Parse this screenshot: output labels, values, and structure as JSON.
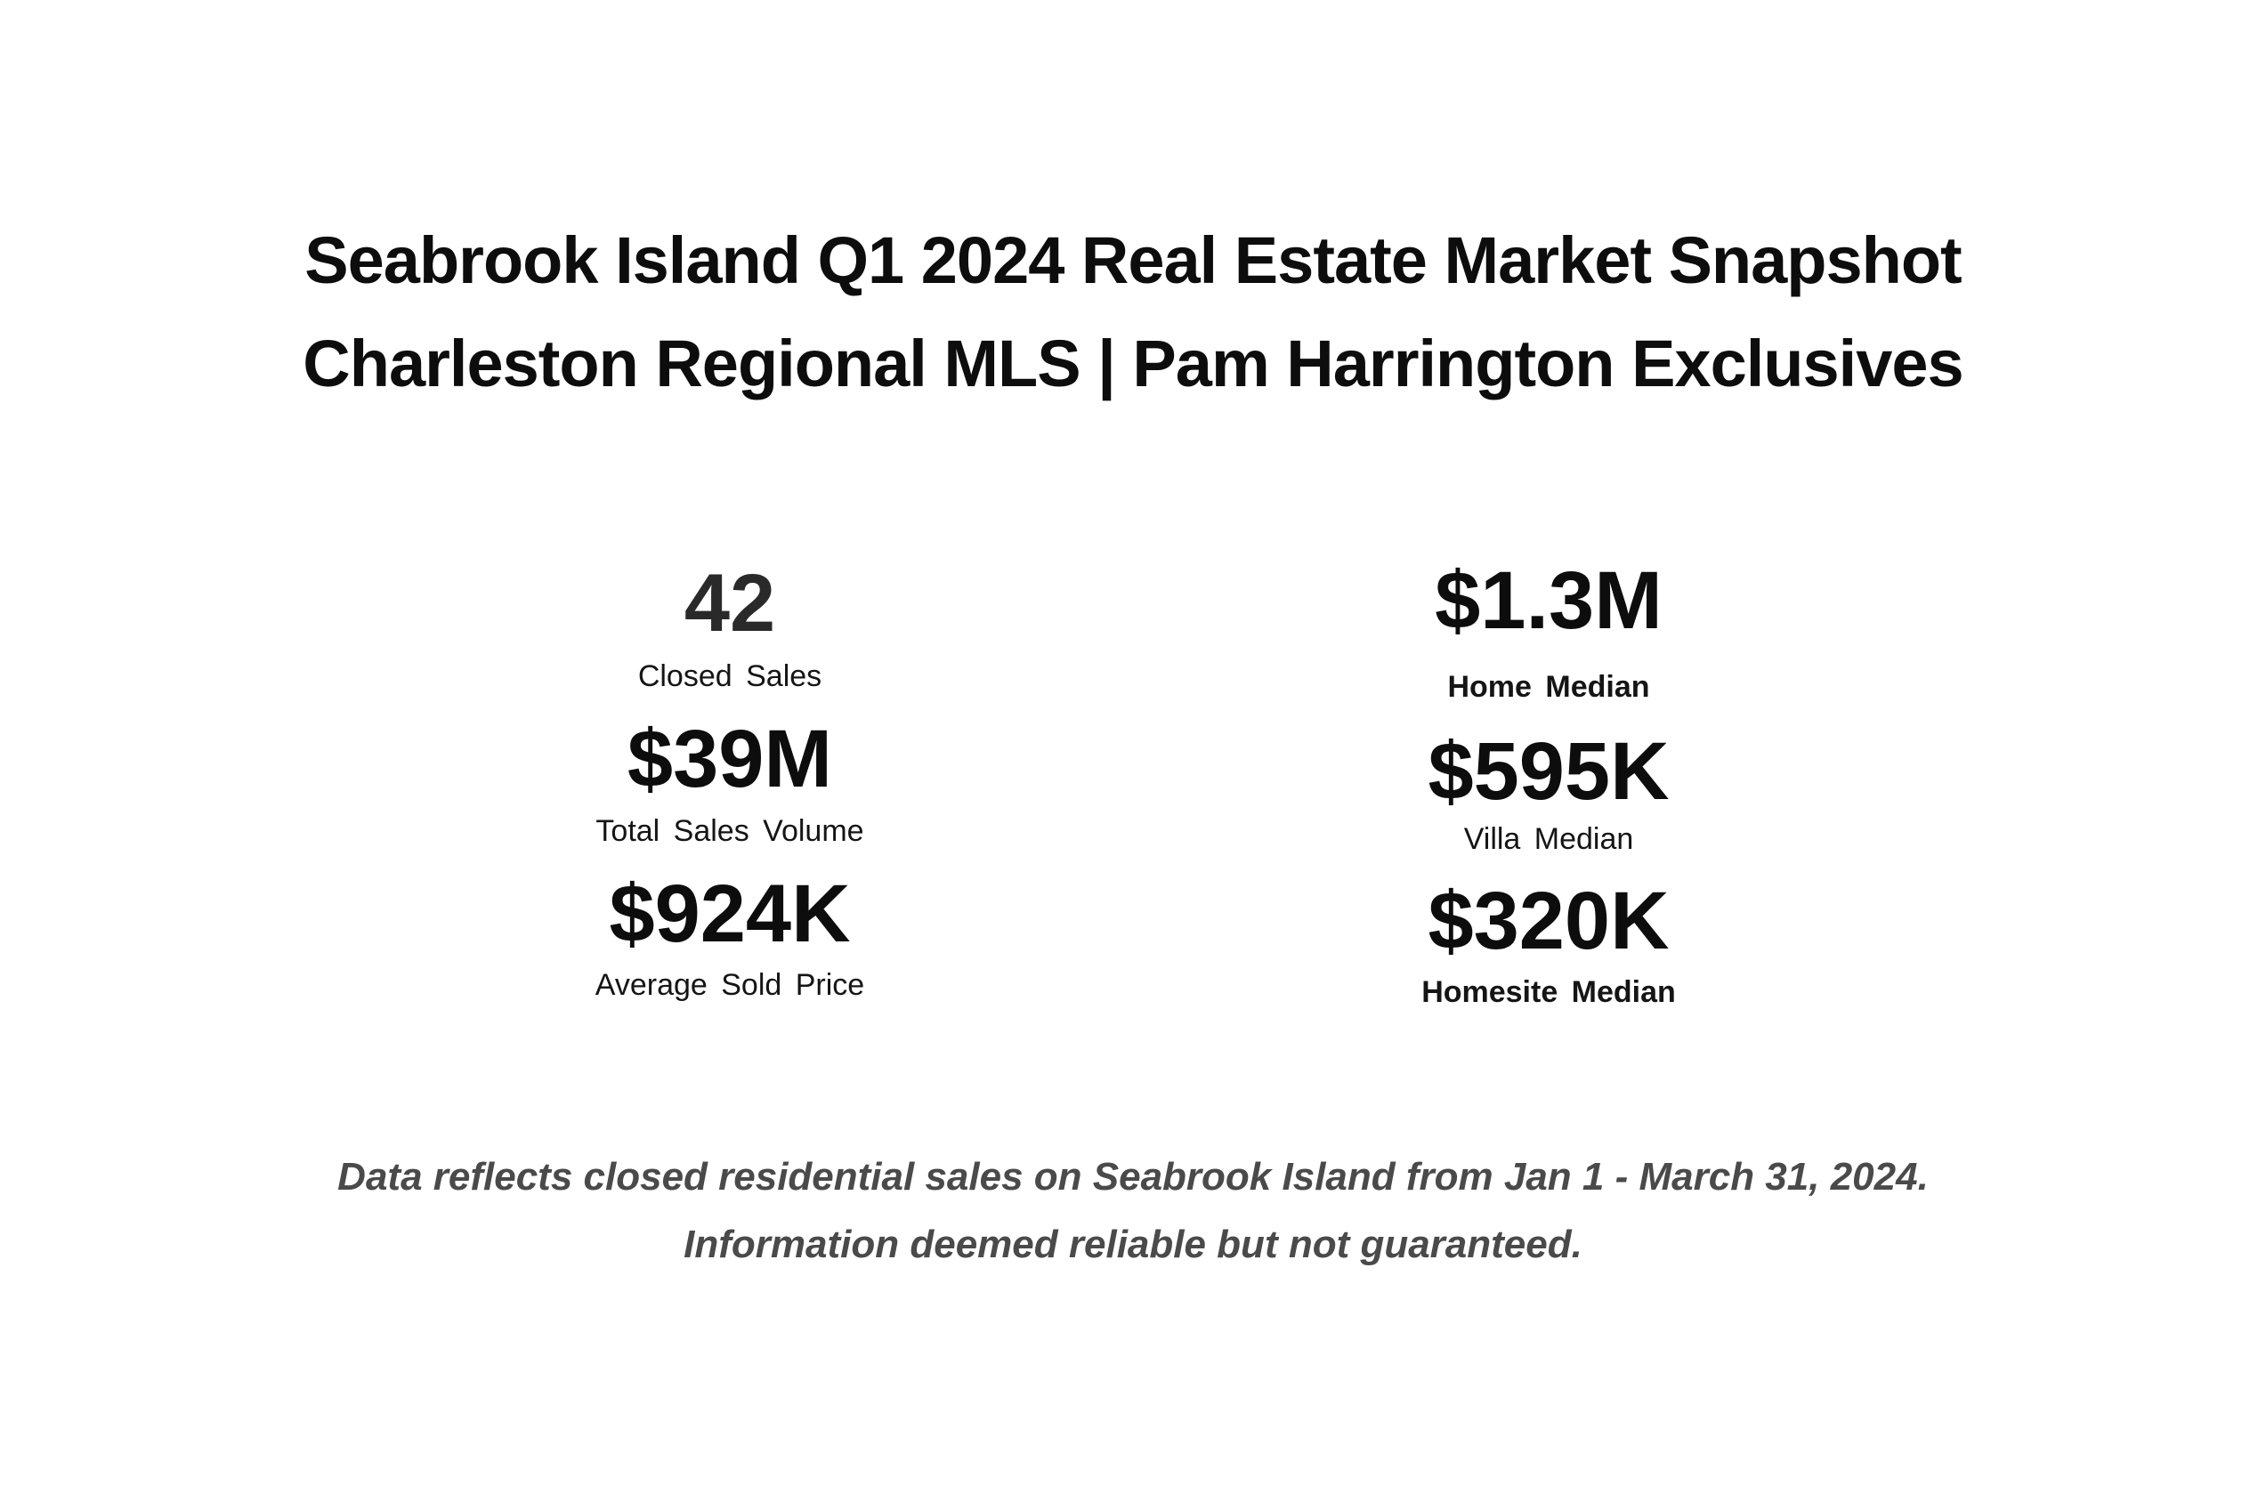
{
  "title": {
    "line1": "Seabrook Island Q1 2024 Real Estate Market Snapshot",
    "line2": "Charleston Regional MLS | Pam Harrington Exclusives"
  },
  "stats_left": [
    {
      "value": "42",
      "label": "Closed Sales"
    },
    {
      "value": "$39M",
      "label": "Total  Sales Volume"
    },
    {
      "value": "$924K",
      "label": "Average  Sold  Price"
    }
  ],
  "stats_right": [
    {
      "value": "$1.3M",
      "label": "Home Median"
    },
    {
      "value": "$595K",
      "label": "Villa Median"
    },
    {
      "value": "$320K",
      "label": "Homesite Median"
    }
  ],
  "footnote": {
    "line1": "Data reflects closed residential sales on Seabrook Island from Jan 1 - March 31, 2024.",
    "line2": "Information deemed reliable but not guaranteed."
  }
}
